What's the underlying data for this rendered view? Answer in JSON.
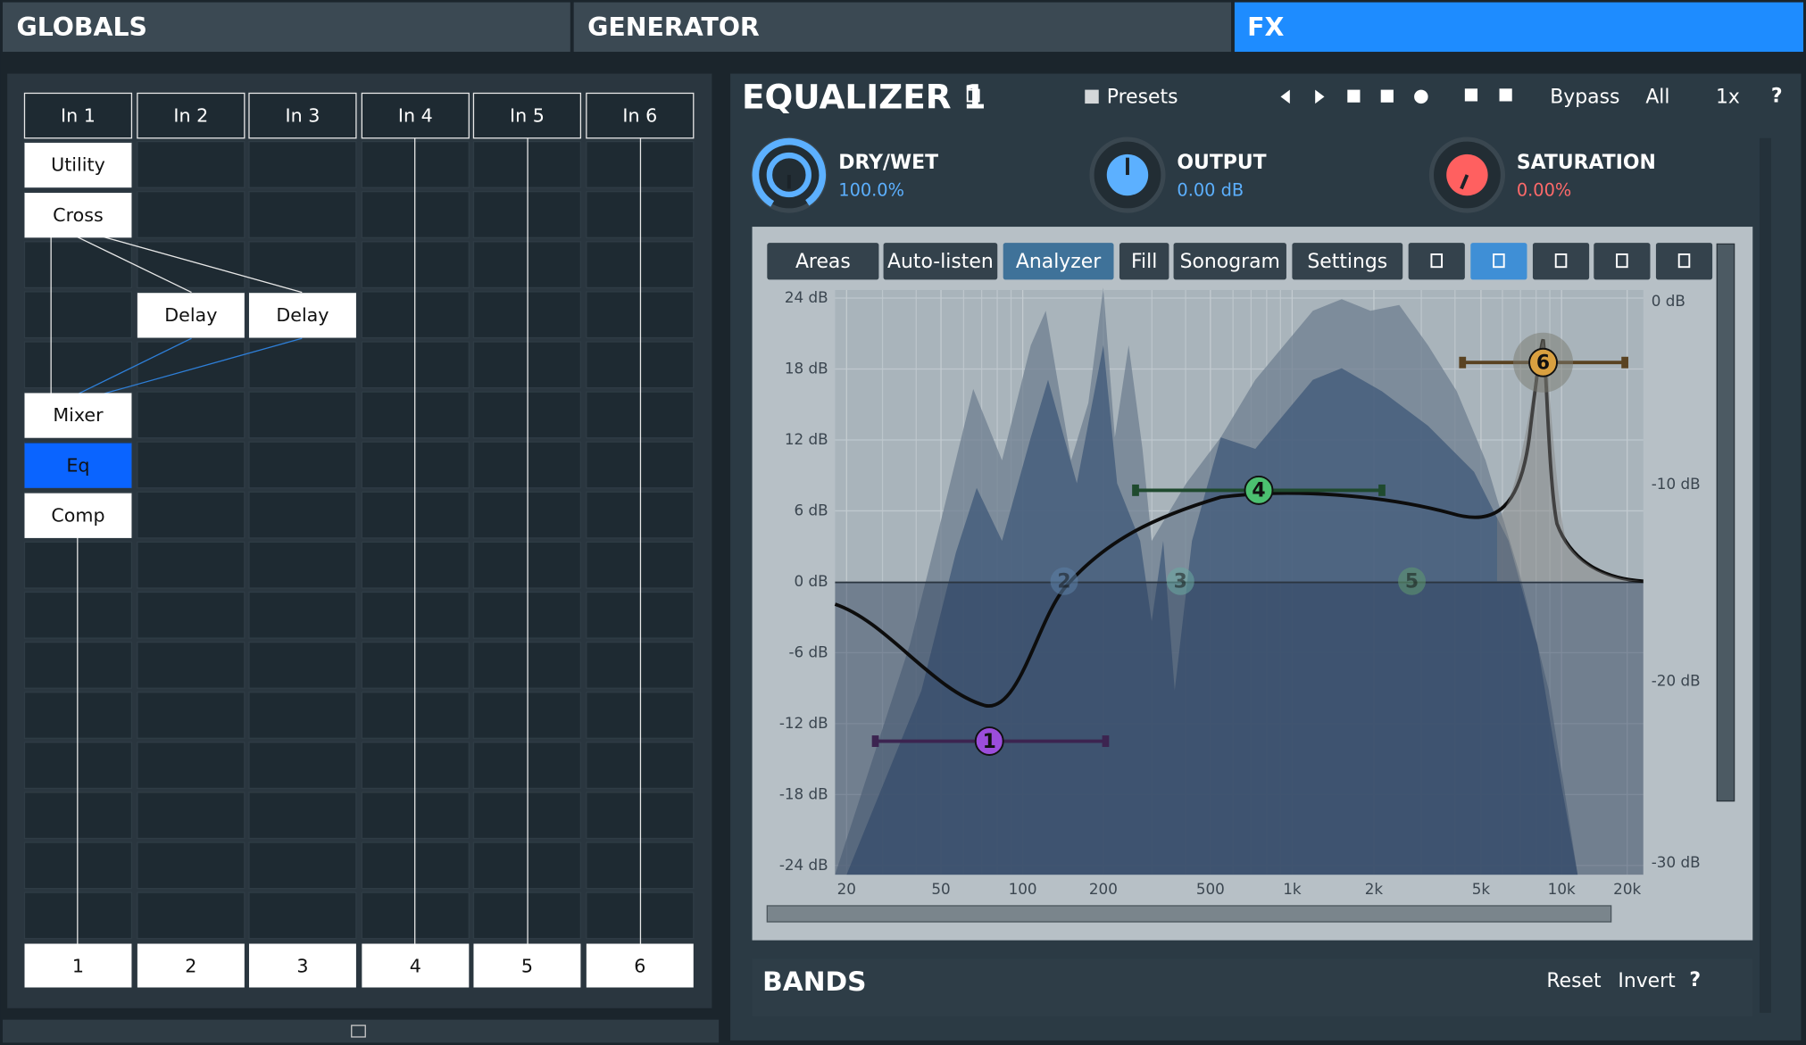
{
  "tabs": [
    "GLOBALS",
    "GENERATOR",
    "FX"
  ],
  "router": {
    "inputs": [
      "In 1",
      "In 2",
      "In 3",
      "In 4",
      "In 5",
      "In 6"
    ],
    "modules": [
      "Utility",
      "Cross",
      "Delay",
      "Delay",
      "Mixer",
      "Eq",
      "Comp"
    ],
    "outputs": [
      "1",
      "2",
      "3",
      "4",
      "5",
      "6"
    ]
  },
  "equalizer": {
    "title": "EQUALIZER 1",
    "presets": "Presets",
    "bypass": "Bypass",
    "all": "All",
    "zoom": "1x",
    "help": "?",
    "knobs": [
      {
        "name": "DRY/WET",
        "value": "100.0%"
      },
      {
        "name": "OUTPUT",
        "value": "0.00 dB"
      },
      {
        "name": "SATURATION",
        "value": "0.00%"
      }
    ],
    "toolbar": [
      "Areas",
      "Auto-listen",
      "Analyzer",
      "Fill",
      "Sonogram",
      "Settings"
    ],
    "y_labels": [
      "24 dB",
      "18 dB",
      "12 dB",
      "6 dB",
      "0 dB",
      "-6 dB",
      "-12 dB",
      "-18 dB",
      "-24 dB"
    ],
    "y2_labels": [
      "0 dB",
      "-10 dB",
      "-20 dB",
      "-30 dB"
    ],
    "x_labels": [
      "20",
      "50",
      "100",
      "200",
      "500",
      "1k",
      "2k",
      "5k",
      "10k",
      "20k"
    ],
    "band_nodes": [
      "1",
      "2",
      "3",
      "4",
      "5",
      "6"
    ]
  },
  "bands": {
    "title": "BANDS",
    "reset": "Reset",
    "invert": "Invert",
    "help": "?"
  }
}
